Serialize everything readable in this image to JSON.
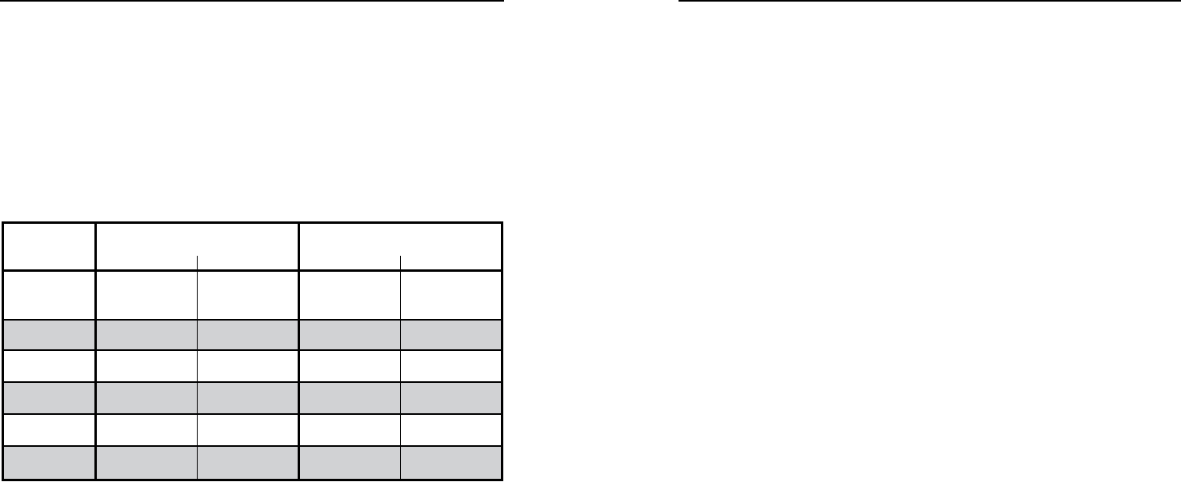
{
  "page": {
    "rule_color": "#000000",
    "background": "#ffffff"
  },
  "table": {
    "border_color": "#000000",
    "shaded_row_color": "#d1d2d4",
    "header": {
      "row1": [
        "",
        "",
        ""
      ],
      "row2": [
        "",
        "",
        "",
        "",
        ""
      ]
    },
    "rows": [
      {
        "shaded": true,
        "cells": [
          "",
          "",
          "",
          "",
          ""
        ]
      },
      {
        "shaded": false,
        "cells": [
          "",
          "",
          "",
          "",
          ""
        ]
      },
      {
        "shaded": true,
        "cells": [
          "",
          "",
          "",
          "",
          ""
        ]
      },
      {
        "shaded": false,
        "cells": [
          "",
          "",
          "",
          "",
          ""
        ]
      },
      {
        "shaded": true,
        "cells": [
          "",
          "",
          "",
          "",
          ""
        ]
      }
    ]
  }
}
